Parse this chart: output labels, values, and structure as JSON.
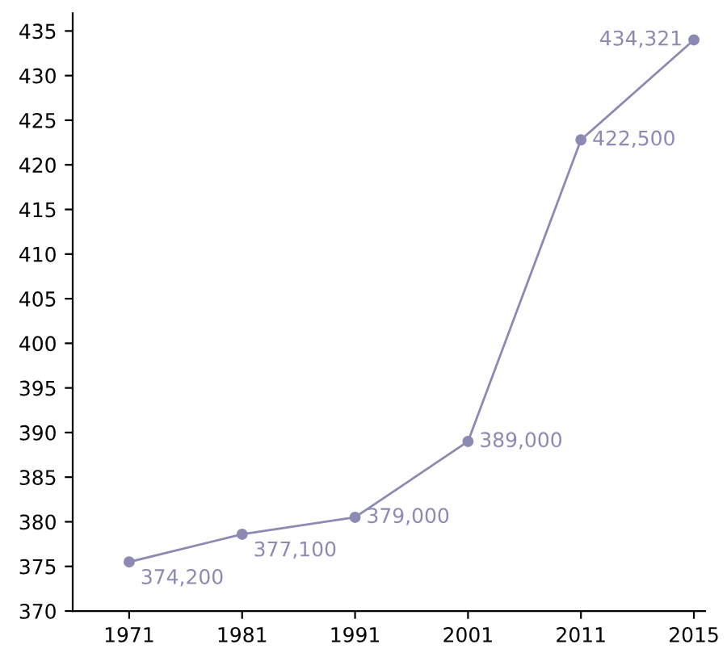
{
  "chart_data": {
    "type": "line",
    "categories": [
      "1971",
      "1981",
      "1991",
      "2001",
      "2011",
      "2015"
    ],
    "series": [
      {
        "color": "#8c89b3",
        "values": [
          375.5,
          378.6,
          380.5,
          389.0,
          422.8,
          434.0
        ]
      }
    ],
    "annotations": [
      "374,200",
      "377,100",
      "379,000",
      "389,000",
      "422,500",
      "434,321"
    ],
    "ylim": [
      370,
      437
    ],
    "yticks": [
      370,
      375,
      380,
      385,
      390,
      395,
      400,
      405,
      410,
      415,
      420,
      425,
      430,
      435
    ],
    "grid": false,
    "legend": false,
    "marker": "circle",
    "line_style": "solid"
  }
}
